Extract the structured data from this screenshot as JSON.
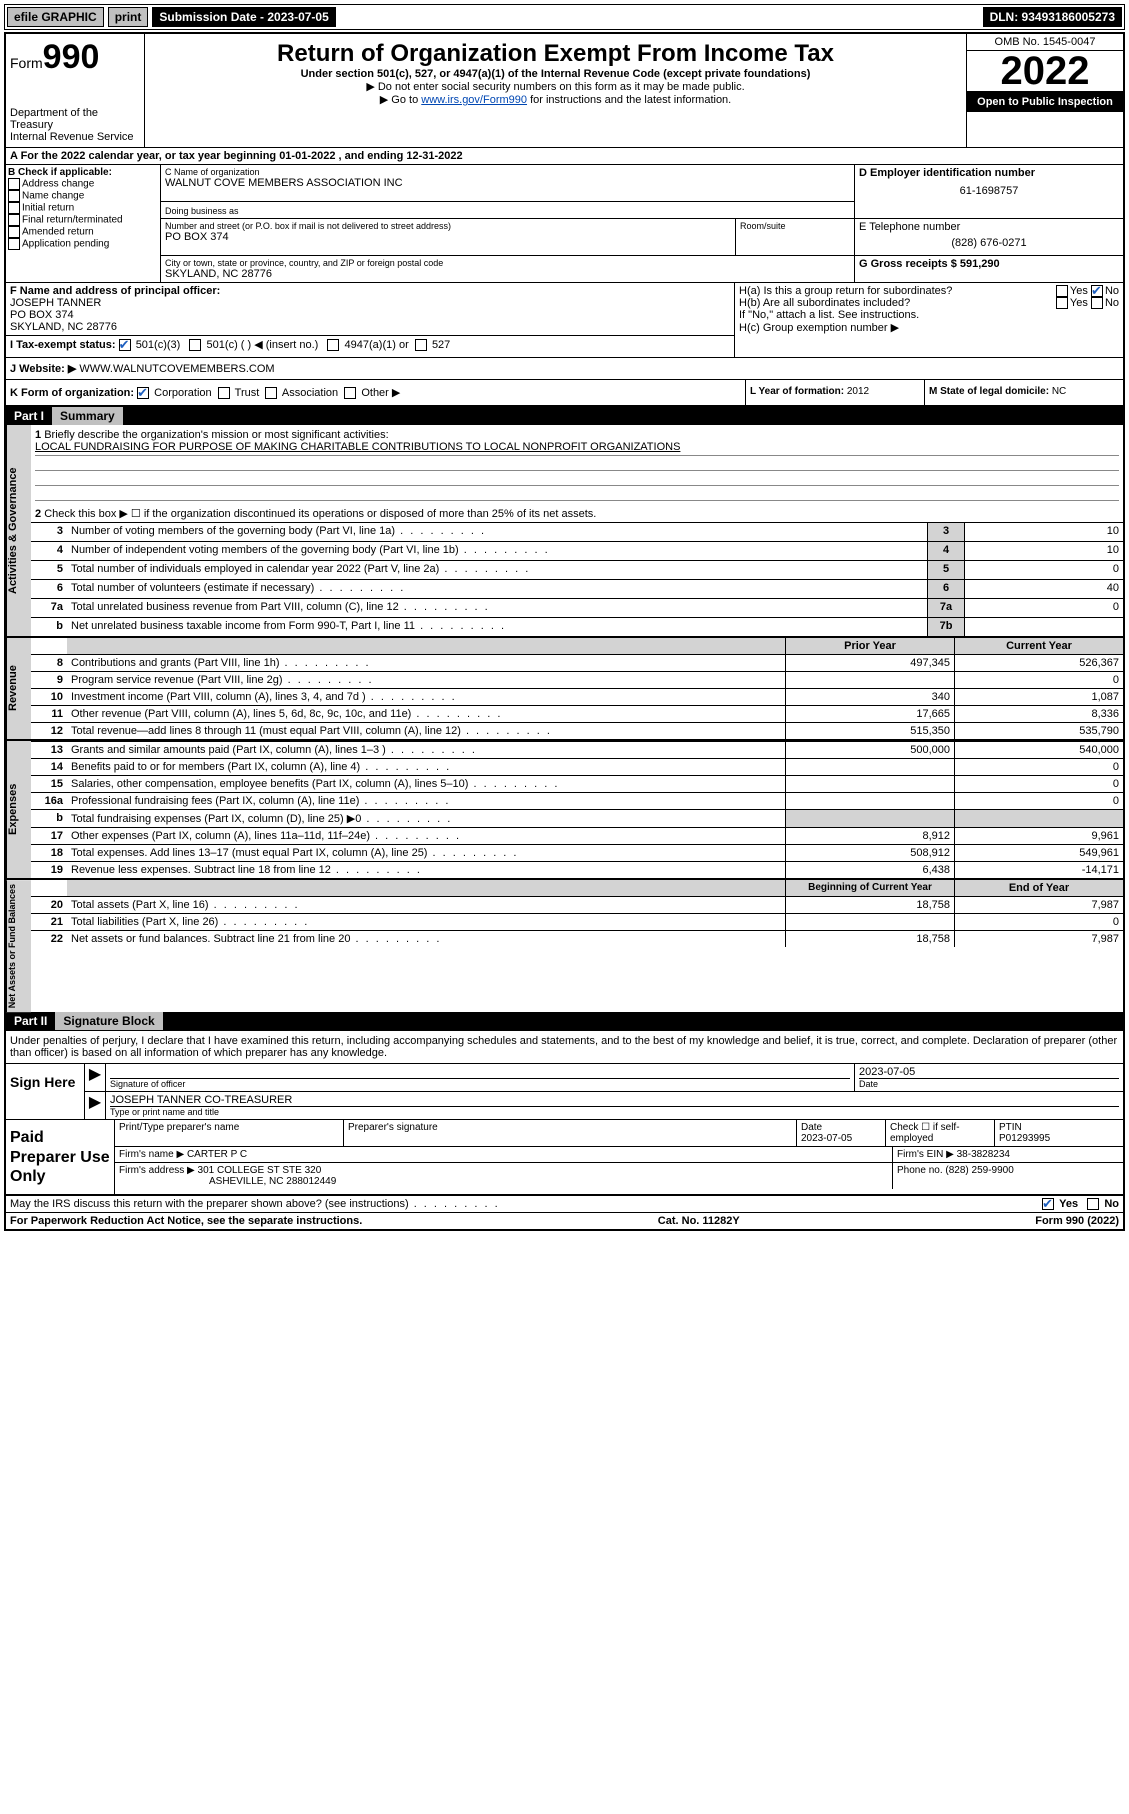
{
  "topbar": {
    "efile": "efile GRAPHIC",
    "print": "print",
    "sub_label": "Submission Date - 2023-07-05",
    "dln": "DLN: 93493186005273"
  },
  "header": {
    "form_prefix": "Form",
    "form_num": "990",
    "dept": "Department of the Treasury",
    "irs": "Internal Revenue Service",
    "title": "Return of Organization Exempt From Income Tax",
    "sub1": "Under section 501(c), 527, or 4947(a)(1) of the Internal Revenue Code (except private foundations)",
    "sub2": "▶ Do not enter social security numbers on this form as it may be made public.",
    "sub3_pre": "▶ Go to ",
    "sub3_link": "www.irs.gov/Form990",
    "sub3_post": " for instructions and the latest information.",
    "omb": "OMB No. 1545-0047",
    "year": "2022",
    "open": "Open to Public Inspection"
  },
  "A": {
    "text": "A For the 2022 calendar year, or tax year beginning 01-01-2022    , and ending 12-31-2022"
  },
  "B": {
    "label": "B Check if applicable:",
    "items": [
      "Address change",
      "Name change",
      "Initial return",
      "Final return/terminated",
      "Amended return",
      "Application pending"
    ]
  },
  "C": {
    "name_lbl": "C Name of organization",
    "name": "WALNUT COVE MEMBERS ASSOCIATION INC",
    "dba_lbl": "Doing business as",
    "addr_lbl": "Number and street (or P.O. box if mail is not delivered to street address)",
    "addr": "PO BOX 374",
    "room_lbl": "Room/suite",
    "city_lbl": "City or town, state or province, country, and ZIP or foreign postal code",
    "city": "SKYLAND, NC  28776"
  },
  "D": {
    "lbl": "D Employer identification number",
    "val": "61-1698757"
  },
  "E": {
    "lbl": "E Telephone number",
    "val": "(828) 676-0271"
  },
  "G": {
    "lbl": "G Gross receipts $",
    "val": "591,290"
  },
  "F": {
    "lbl": "F  Name and address of principal officer:",
    "name": "JOSEPH TANNER",
    "addr": "PO BOX 374",
    "city": "SKYLAND, NC  28776"
  },
  "H": {
    "a": "H(a)  Is this a group return for subordinates?",
    "a_yes": "Yes",
    "a_no": "No",
    "b": "H(b)  Are all subordinates included?",
    "b_note": "If \"No,\" attach a list. See instructions.",
    "c": "H(c)  Group exemption number ▶"
  },
  "I": {
    "lbl": "I   Tax-exempt status:",
    "c3": "501(c)(3)",
    "c": "501(c) (  ) ◀ (insert no.)",
    "a1": "4947(a)(1) or",
    "527": "527"
  },
  "J": {
    "lbl": "J   Website: ▶",
    "val": "WWW.WALNUTCOVEMEMBERS.COM"
  },
  "K": {
    "lbl": "K Form of organization:",
    "corp": "Corporation",
    "trust": "Trust",
    "assoc": "Association",
    "other": "Other ▶"
  },
  "L": {
    "lbl": "L Year of formation:",
    "val": "2012"
  },
  "M": {
    "lbl": "M State of legal domicile:",
    "val": "NC"
  },
  "partI": {
    "pt": "Part I",
    "title": "Summary"
  },
  "q1": {
    "num": "1",
    "text": "Briefly describe the organization's mission or most significant activities:",
    "mission": "LOCAL FUNDRAISING FOR PURPOSE OF MAKING CHARITABLE CONTRIBUTIONS TO LOCAL NONPROFIT ORGANIZATIONS"
  },
  "q2": {
    "num": "2",
    "text": "Check this box ▶ ☐  if the organization discontinued its operations or disposed of more than 25% of its net assets."
  },
  "gov": {
    "tab": "Activities & Governance",
    "rows": [
      {
        "n": "3",
        "t": "Number of voting members of the governing body (Part VI, line 1a)",
        "box": "3",
        "v": "10"
      },
      {
        "n": "4",
        "t": "Number of independent voting members of the governing body (Part VI, line 1b)",
        "box": "4",
        "v": "10"
      },
      {
        "n": "5",
        "t": "Total number of individuals employed in calendar year 2022 (Part V, line 2a)",
        "box": "5",
        "v": "0"
      },
      {
        "n": "6",
        "t": "Total number of volunteers (estimate if necessary)",
        "box": "6",
        "v": "40"
      },
      {
        "n": "7a",
        "t": "Total unrelated business revenue from Part VIII, column (C), line 12",
        "box": "7a",
        "v": "0"
      },
      {
        "n": "b",
        "t": "Net unrelated business taxable income from Form 990-T, Part I, line 11",
        "box": "7b",
        "v": ""
      }
    ]
  },
  "rev": {
    "tab": "Revenue",
    "header_prior": "Prior Year",
    "header_current": "Current Year",
    "rows": [
      {
        "n": "8",
        "t": "Contributions and grants (Part VIII, line 1h)",
        "p": "497,345",
        "c": "526,367"
      },
      {
        "n": "9",
        "t": "Program service revenue (Part VIII, line 2g)",
        "p": "",
        "c": "0"
      },
      {
        "n": "10",
        "t": "Investment income (Part VIII, column (A), lines 3, 4, and 7d )",
        "p": "340",
        "c": "1,087"
      },
      {
        "n": "11",
        "t": "Other revenue (Part VIII, column (A), lines 5, 6d, 8c, 9c, 10c, and 11e)",
        "p": "17,665",
        "c": "8,336"
      },
      {
        "n": "12",
        "t": "Total revenue—add lines 8 through 11 (must equal Part VIII, column (A), line 12)",
        "p": "515,350",
        "c": "535,790"
      }
    ]
  },
  "exp": {
    "tab": "Expenses",
    "rows": [
      {
        "n": "13",
        "t": "Grants and similar amounts paid (Part IX, column (A), lines 1–3 )",
        "p": "500,000",
        "c": "540,000"
      },
      {
        "n": "14",
        "t": "Benefits paid to or for members (Part IX, column (A), line 4)",
        "p": "",
        "c": "0"
      },
      {
        "n": "15",
        "t": "Salaries, other compensation, employee benefits (Part IX, column (A), lines 5–10)",
        "p": "",
        "c": "0"
      },
      {
        "n": "16a",
        "t": "Professional fundraising fees (Part IX, column (A), line 11e)",
        "p": "",
        "c": "0"
      },
      {
        "n": "b",
        "t": "Total fundraising expenses (Part IX, column (D), line 25) ▶0",
        "p": "__shade__",
        "c": "__shade__"
      },
      {
        "n": "17",
        "t": "Other expenses (Part IX, column (A), lines 11a–11d, 11f–24e)",
        "p": "8,912",
        "c": "9,961"
      },
      {
        "n": "18",
        "t": "Total expenses. Add lines 13–17 (must equal Part IX, column (A), line 25)",
        "p": "508,912",
        "c": "549,961"
      },
      {
        "n": "19",
        "t": "Revenue less expenses. Subtract line 18 from line 12",
        "p": "6,438",
        "c": "-14,171"
      }
    ]
  },
  "net": {
    "tab": "Net Assets or Fund Balances",
    "header_beg": "Beginning of Current Year",
    "header_end": "End of Year",
    "rows": [
      {
        "n": "20",
        "t": "Total assets (Part X, line 16)",
        "p": "18,758",
        "c": "7,987"
      },
      {
        "n": "21",
        "t": "Total liabilities (Part X, line 26)",
        "p": "",
        "c": "0"
      },
      {
        "n": "22",
        "t": "Net assets or fund balances. Subtract line 21 from line 20",
        "p": "18,758",
        "c": "7,987"
      }
    ]
  },
  "partII": {
    "pt": "Part II",
    "title": "Signature Block"
  },
  "sig": {
    "intro": "Under penalties of perjury, I declare that I have examined this return, including accompanying schedules and statements, and to the best of my knowledge and belief, it is true, correct, and complete. Declaration of preparer (other than officer) is based on all information of which preparer has any knowledge.",
    "sign_here": "Sign Here",
    "sig_officer": "Signature of officer",
    "date": "2023-07-05",
    "date_lbl": "Date",
    "name_title": "JOSEPH TANNER  CO-TREASURER",
    "name_title_lbl": "Type or print name and title"
  },
  "paid": {
    "label": "Paid Preparer Use Only",
    "h_name": "Print/Type preparer's name",
    "h_sig": "Preparer's signature",
    "h_date": "Date",
    "date": "2023-07-05",
    "h_check": "Check ☐ if self-employed",
    "h_ptin": "PTIN",
    "ptin": "P01293995",
    "firm_lbl": "Firm's name    ▶",
    "firm": "CARTER P C",
    "ein_lbl": "Firm's EIN ▶",
    "ein": "38-3828234",
    "addr_lbl": "Firm's address ▶",
    "addr1": "301 COLLEGE ST STE 320",
    "addr2": "ASHEVILLE, NC  288012449",
    "phone_lbl": "Phone no.",
    "phone": "(828) 259-9900"
  },
  "discuss": {
    "text": "May the IRS discuss this return with the preparer shown above? (see instructions)",
    "yes": "Yes",
    "no": "No"
  },
  "footer": {
    "left": "For Paperwork Reduction Act Notice, see the separate instructions.",
    "mid": "Cat. No. 11282Y",
    "right": "Form 990 (2022)"
  }
}
